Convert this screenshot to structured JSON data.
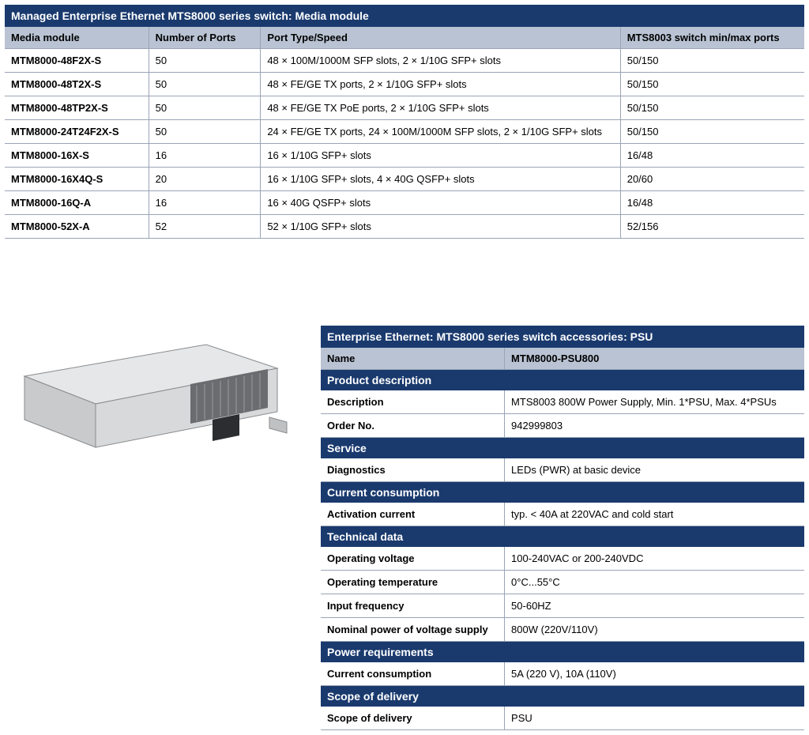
{
  "colors": {
    "brand_navy": "#1a3a6e",
    "header_grey": "#b9c3d3",
    "border_grey": "#9aa4b5",
    "text": "#000000",
    "background": "#ffffff"
  },
  "table1": {
    "title": "Managed Enterprise Ethernet MTS8000 series switch: Media module",
    "columns": [
      "Media module",
      "Number of Ports",
      "Port Type/Speed",
      "MTS8003 switch min/max ports"
    ],
    "col_widths_pct": [
      18,
      14,
      45,
      23
    ],
    "rows": [
      [
        "MTM8000-48F2X-S",
        "50",
        "48 × 100M/1000M SFP slots, 2 × 1/10G SFP+ slots",
        "50/150"
      ],
      [
        "MTM8000-48T2X-S",
        "50",
        "48 × FE/GE TX ports, 2 × 1/10G SFP+ slots",
        "50/150"
      ],
      [
        "MTM8000-48TP2X-S",
        "50",
        "48 × FE/GE TX PoE ports, 2 × 1/10G SFP+ slots",
        "50/150"
      ],
      [
        "MTM8000-24T24F2X-S",
        "50",
        "24 × FE/GE TX ports, 24 × 100M/1000M SFP slots, 2 × 1/10G SFP+ slots",
        "50/150"
      ],
      [
        "MTM8000-16X-S",
        "16",
        "16 × 1/10G SFP+ slots",
        "16/48"
      ],
      [
        "MTM8000-16X4Q-S",
        "20",
        "16 × 1/10G SFP+ slots, 4 × 40G QSFP+ slots",
        "20/60"
      ],
      [
        "MTM8000-16Q-A",
        "16",
        "16 × 40G QSFP+ slots",
        "16/48"
      ],
      [
        "MTM8000-52X-A",
        "52",
        "52 × 1/10G SFP+ slots",
        "52/156"
      ]
    ]
  },
  "table2": {
    "title": "Enterprise Ethernet: MTS8000 series switch accessories: PSU",
    "name_label": "Name",
    "name_value": "MTM8000-PSU800",
    "sections": [
      {
        "heading": "Product description",
        "rows": [
          [
            "Description",
            "MTS8003 800W Power Supply, Min. 1*PSU, Max. 4*PSUs"
          ],
          [
            "Order No.",
            "942999803"
          ]
        ]
      },
      {
        "heading": "Service",
        "rows": [
          [
            "Diagnostics",
            "LEDs (PWR) at basic device"
          ]
        ]
      },
      {
        "heading": "Current consumption",
        "rows": [
          [
            "Activation current",
            "typ. < 40A at 220VAC and cold start"
          ]
        ]
      },
      {
        "heading": "Technical data",
        "rows": [
          [
            "Operating voltage",
            "100-240VAC or 200-240VDC"
          ],
          [
            "Operating temperature",
            "0°C...55°C"
          ],
          [
            "Input frequency",
            "50-60HZ"
          ],
          [
            "Nominal power of voltage supply",
            "800W (220V/110V)"
          ]
        ]
      },
      {
        "heading": "Power requirements",
        "rows": [
          [
            "Current consumption",
            "5A (220 V), 10A (110V)"
          ]
        ]
      },
      {
        "heading": "Scope of delivery",
        "rows": [
          [
            "Scope of delivery",
            "PSU"
          ]
        ]
      }
    ]
  },
  "psu_image": {
    "alt": "PSU module photo",
    "body_fill": "#d8d9da",
    "body_stroke": "#888a8c",
    "shadow_fill": "#8a8c8e",
    "vent_fill": "#5b5d60",
    "plug_fill": "#2b2d30"
  }
}
